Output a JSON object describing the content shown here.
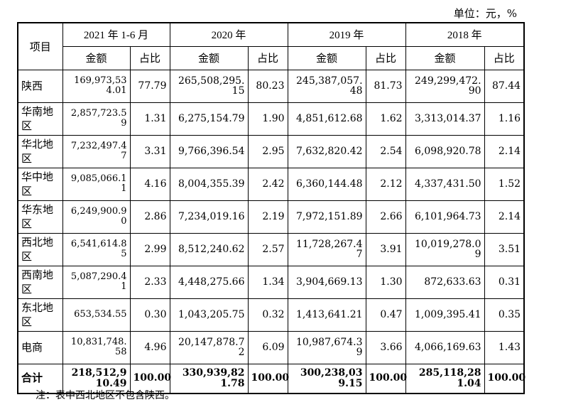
{
  "unit_label": "单位：元，%",
  "header": {
    "item": "项目",
    "periods": [
      "2021 年 1-6 月",
      "2020 年",
      "2019 年",
      "2018 年"
    ],
    "amount": "金额",
    "ratio": "占比"
  },
  "rows": [
    {
      "region": "陕西",
      "v": [
        "169,973,534.01",
        "77.79",
        "265,508,295.15",
        "80.23",
        "245,387,057.48",
        "81.73",
        "249,299,472.90",
        "87.44"
      ]
    },
    {
      "region": "华南地区",
      "v": [
        "2,857,723.59",
        "1.31",
        "6,275,154.79",
        "1.90",
        "4,851,612.68",
        "1.62",
        "3,313,014.37",
        "1.16"
      ]
    },
    {
      "region": "华北地区",
      "v": [
        "7,232,497.47",
        "3.31",
        "9,766,396.54",
        "2.95",
        "7,632,820.42",
        "2.54",
        "6,098,920.78",
        "2.14"
      ]
    },
    {
      "region": "华中地区",
      "v": [
        "9,085,066.11",
        "4.16",
        "8,004,355.39",
        "2.42",
        "6,360,144.48",
        "2.12",
        "4,337,431.50",
        "1.52"
      ]
    },
    {
      "region": "华东地区",
      "v": [
        "6,249,900.90",
        "2.86",
        "7,234,019.16",
        "2.19",
        "7,972,151.89",
        "2.66",
        "6,101,964.73",
        "2.14"
      ]
    },
    {
      "region": "西北地区",
      "v": [
        "6,541,614.85",
        "2.99",
        "8,512,240.62",
        "2.57",
        "11,728,267.47",
        "3.91",
        "10,019,278.09",
        "3.51"
      ]
    },
    {
      "region": "西南地区",
      "v": [
        "5,087,290.41",
        "2.33",
        "4,448,275.66",
        "1.34",
        "3,904,669.13",
        "1.30",
        "872,633.63",
        "0.31"
      ]
    },
    {
      "region": "东北地区",
      "v": [
        "653,534.55",
        "0.30",
        "1,043,205.75",
        "0.32",
        "1,413,641.21",
        "0.47",
        "1,009,395.41",
        "0.35"
      ]
    },
    {
      "region": "电商",
      "v": [
        "10,831,748.58",
        "4.96",
        "20,147,878.72",
        "6.09",
        "10,987,674.39",
        "3.66",
        "4,066,169.63",
        "1.43"
      ]
    }
  ],
  "total": {
    "label": "合计",
    "v": [
      "218,512,910.49",
      "100.00",
      "330,939,821.78",
      "100.00",
      "300,238,039.15",
      "100.00",
      "285,118,281.04",
      "100.00"
    ]
  },
  "note": "注：表中西北地区不包含陕西。"
}
